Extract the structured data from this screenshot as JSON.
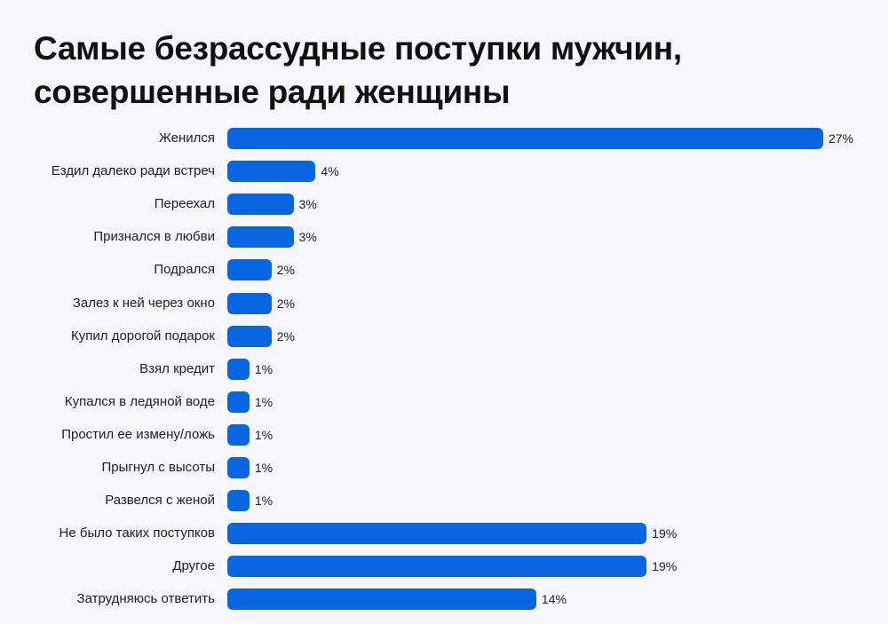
{
  "chart_data": {
    "type": "bar",
    "orientation": "horizontal",
    "title": "Самые безрассудные поступки мужчин, совершенные ради женщины",
    "title_lines": [
      "Самые безрассудные поступки мужчин,",
      "совершенные ради женщины"
    ],
    "xlabel": "",
    "ylabel": "",
    "unit": "%",
    "grid": false,
    "legend": null,
    "bar_color": "#0a66e0",
    "categories": [
      "Женился",
      "Ездил далеко ради встреч",
      "Переехал",
      "Признался в любви",
      "Подрался",
      "Залез к ней через окно",
      "Купил дорогой подарок",
      "Взял кредит",
      "Купался в ледяной воде",
      "Простил ее измену/ложь",
      "Прыгнул с высоты",
      "Развелся с женой",
      "Не было таких поступков",
      "Другое",
      "Затрудняюсь ответить"
    ],
    "values": [
      27,
      4,
      3,
      3,
      2,
      2,
      2,
      1,
      1,
      1,
      1,
      1,
      19,
      19,
      14
    ],
    "value_labels": [
      "27%",
      "4%",
      "3%",
      "3%",
      "2%",
      "2%",
      "2%",
      "1%",
      "1%",
      "1%",
      "1%",
      "1%",
      "19%",
      "19%",
      "14%"
    ],
    "xlim": [
      0,
      27
    ]
  }
}
